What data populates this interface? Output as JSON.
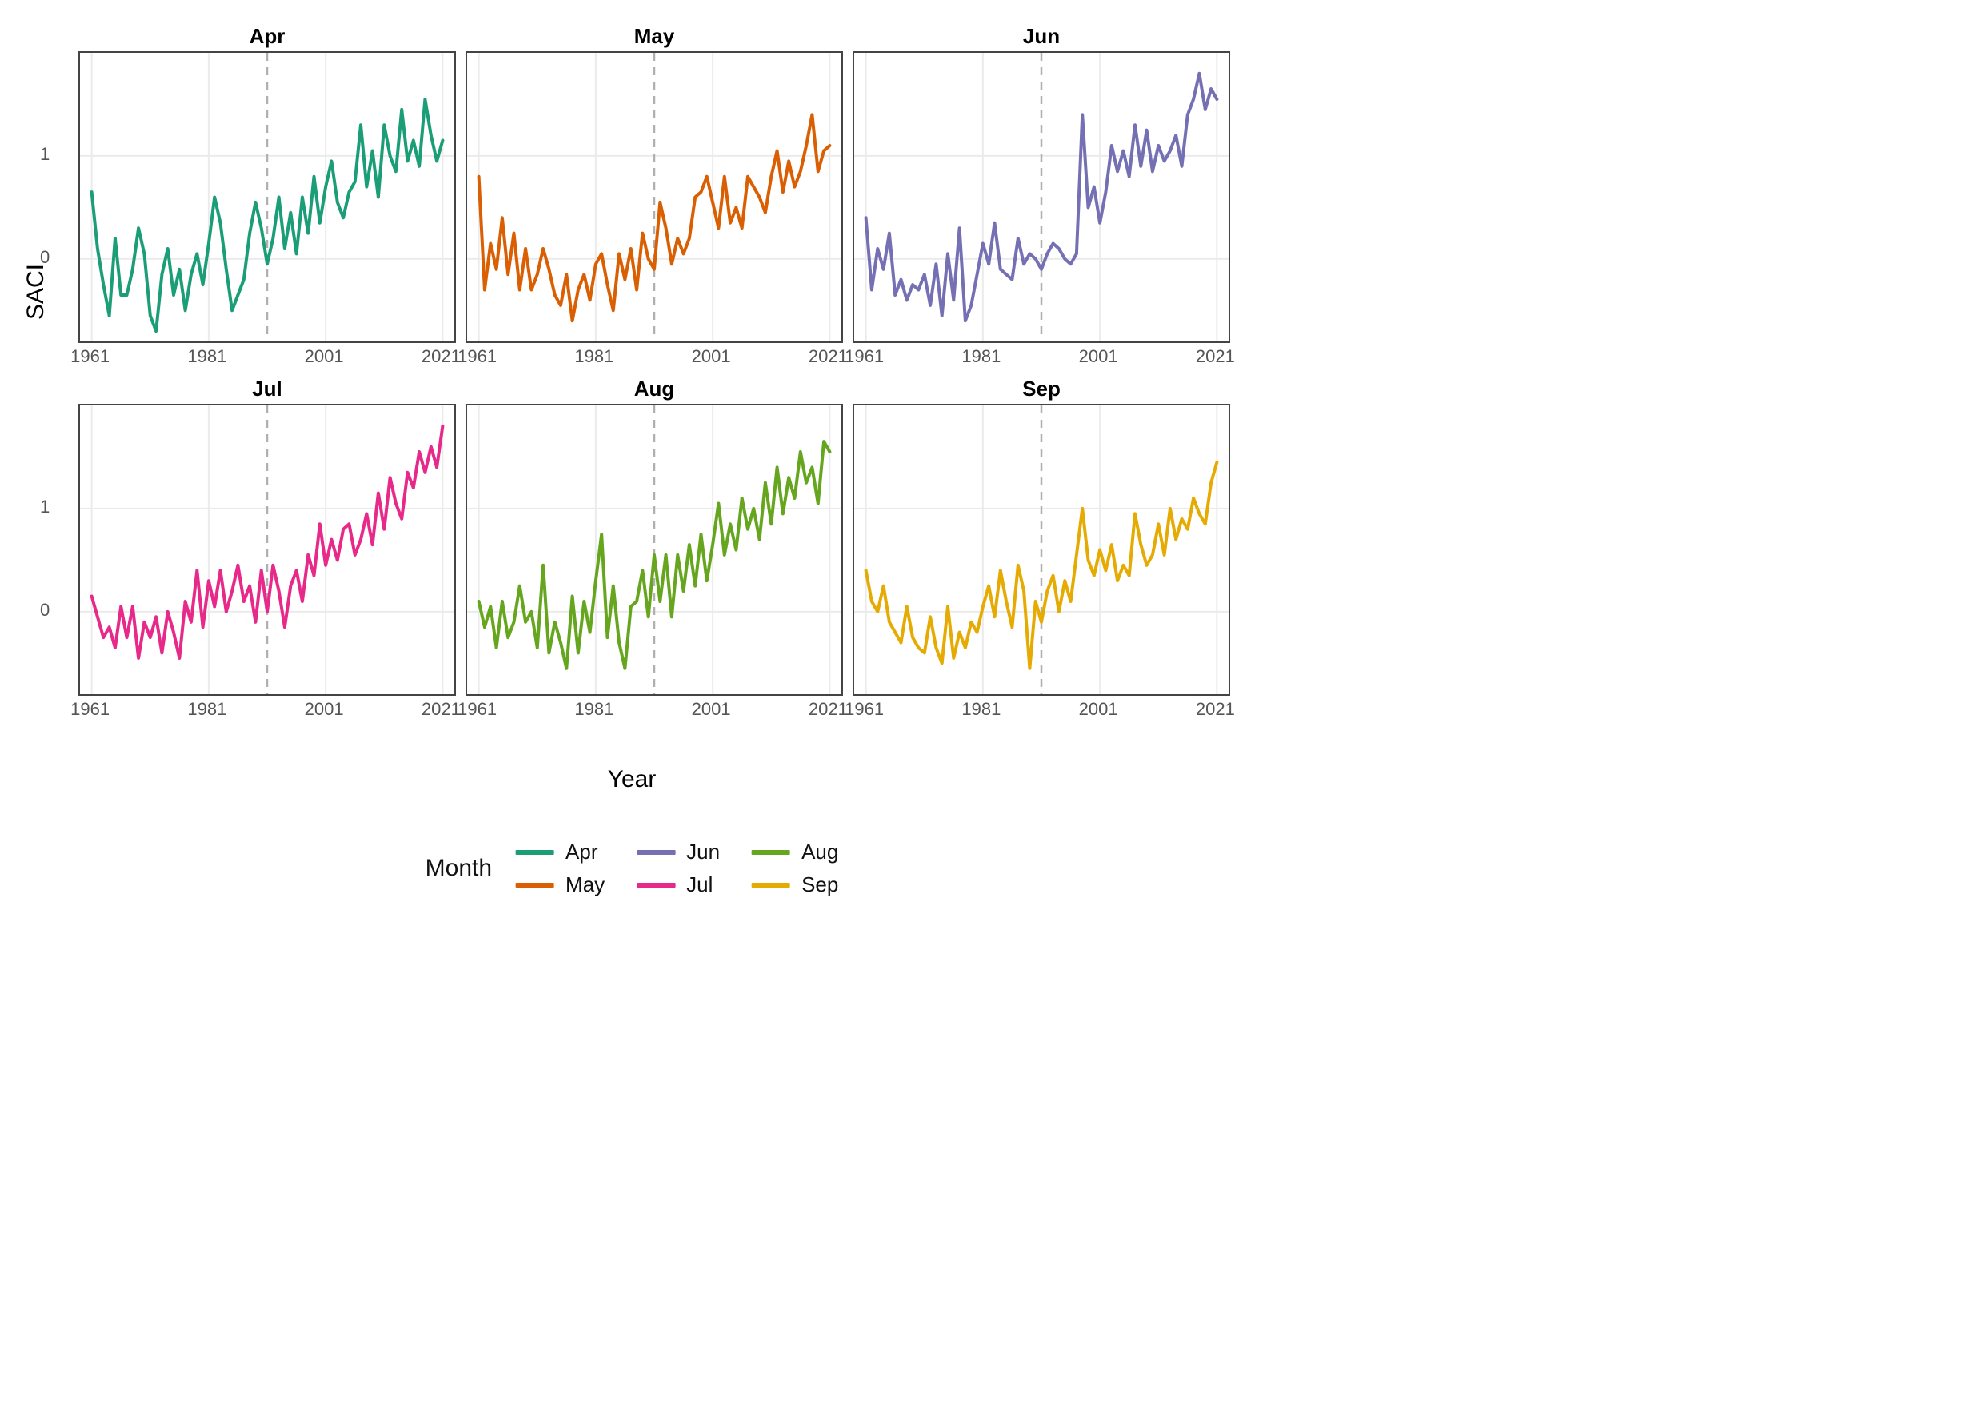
{
  "figure": {
    "background_color": "#ffffff",
    "grid_color": "#ebebeb",
    "panel_border_color": "#444444",
    "vline_color": "#b0b0b0",
    "vline_dash": "10 8",
    "line_width": 4,
    "x_axis_label": "Year",
    "y_axis_label": "SACI",
    "x_ticks": [
      1961,
      1981,
      2001,
      2021
    ],
    "x_range": [
      1959,
      2023
    ],
    "y_ticks": [
      0,
      1
    ],
    "y_range": [
      -0.8,
      2.0
    ],
    "vline_x": 1991,
    "title_fontsize": 26,
    "tick_fontsize": 22,
    "axis_label_fontsize": 30,
    "legend_title_fontsize": 30,
    "legend_label_fontsize": 26
  },
  "legend": {
    "title": "Month",
    "items": [
      {
        "label": "Apr",
        "color": "#1b9e77"
      },
      {
        "label": "May",
        "color": "#d95f02"
      },
      {
        "label": "Jun",
        "color": "#7570b3"
      },
      {
        "label": "Jul",
        "color": "#e7298a"
      },
      {
        "label": "Aug",
        "color": "#66a61e"
      },
      {
        "label": "Sep",
        "color": "#e6ab02"
      }
    ]
  },
  "facets": [
    {
      "title": "Apr",
      "color": "#1b9e77",
      "x_start": 1961,
      "values": [
        0.65,
        0.1,
        -0.25,
        -0.55,
        0.2,
        -0.35,
        -0.35,
        -0.1,
        0.3,
        0.05,
        -0.55,
        -0.7,
        -0.15,
        0.1,
        -0.35,
        -0.1,
        -0.5,
        -0.15,
        0.05,
        -0.25,
        0.15,
        0.6,
        0.35,
        -0.1,
        -0.5,
        -0.35,
        -0.2,
        0.25,
        0.55,
        0.3,
        -0.05,
        0.2,
        0.6,
        0.1,
        0.45,
        0.05,
        0.6,
        0.25,
        0.8,
        0.35,
        0.7,
        0.95,
        0.55,
        0.4,
        0.65,
        0.75,
        1.3,
        0.7,
        1.05,
        0.6,
        1.3,
        1.0,
        0.85,
        1.45,
        0.95,
        1.15,
        0.9,
        1.55,
        1.2,
        0.95,
        1.15
      ]
    },
    {
      "title": "May",
      "color": "#d95f02",
      "x_start": 1961,
      "values": [
        0.8,
        -0.3,
        0.15,
        -0.1,
        0.4,
        -0.15,
        0.25,
        -0.3,
        0.1,
        -0.3,
        -0.15,
        0.1,
        -0.1,
        -0.35,
        -0.45,
        -0.15,
        -0.6,
        -0.3,
        -0.15,
        -0.4,
        -0.05,
        0.05,
        -0.25,
        -0.5,
        0.05,
        -0.2,
        0.1,
        -0.3,
        0.25,
        0.0,
        -0.1,
        0.55,
        0.3,
        -0.05,
        0.2,
        0.05,
        0.2,
        0.6,
        0.65,
        0.8,
        0.55,
        0.3,
        0.8,
        0.35,
        0.5,
        0.3,
        0.8,
        0.7,
        0.6,
        0.45,
        0.8,
        1.05,
        0.65,
        0.95,
        0.7,
        0.85,
        1.1,
        1.4,
        0.85,
        1.05,
        1.1
      ]
    },
    {
      "title": "Jun",
      "color": "#7570b3",
      "x_start": 1961,
      "values": [
        0.4,
        -0.3,
        0.1,
        -0.1,
        0.25,
        -0.35,
        -0.2,
        -0.4,
        -0.25,
        -0.3,
        -0.15,
        -0.45,
        -0.05,
        -0.55,
        0.05,
        -0.4,
        0.3,
        -0.6,
        -0.45,
        -0.15,
        0.15,
        -0.05,
        0.35,
        -0.1,
        -0.15,
        -0.2,
        0.2,
        -0.05,
        0.05,
        0.0,
        -0.1,
        0.05,
        0.15,
        0.1,
        0.0,
        -0.05,
        0.05,
        1.4,
        0.5,
        0.7,
        0.35,
        0.65,
        1.1,
        0.85,
        1.05,
        0.8,
        1.3,
        0.9,
        1.25,
        0.85,
        1.1,
        0.95,
        1.05,
        1.2,
        0.9,
        1.4,
        1.55,
        1.8,
        1.45,
        1.65,
        1.55
      ]
    },
    {
      "title": "Jul",
      "color": "#e7298a",
      "x_start": 1961,
      "values": [
        0.15,
        -0.05,
        -0.25,
        -0.15,
        -0.35,
        0.05,
        -0.25,
        0.05,
        -0.45,
        -0.1,
        -0.25,
        -0.05,
        -0.4,
        0.0,
        -0.2,
        -0.45,
        0.1,
        -0.1,
        0.4,
        -0.15,
        0.3,
        0.05,
        0.4,
        0.0,
        0.2,
        0.45,
        0.1,
        0.25,
        -0.1,
        0.4,
        0.0,
        0.45,
        0.2,
        -0.15,
        0.25,
        0.4,
        0.1,
        0.55,
        0.35,
        0.85,
        0.45,
        0.7,
        0.5,
        0.8,
        0.85,
        0.55,
        0.7,
        0.95,
        0.65,
        1.15,
        0.8,
        1.3,
        1.05,
        0.9,
        1.35,
        1.2,
        1.55,
        1.35,
        1.6,
        1.4,
        1.8
      ]
    },
    {
      "title": "Aug",
      "color": "#66a61e",
      "x_start": 1961,
      "values": [
        0.1,
        -0.15,
        0.05,
        -0.35,
        0.1,
        -0.25,
        -0.1,
        0.25,
        -0.1,
        0.0,
        -0.35,
        0.45,
        -0.4,
        -0.1,
        -0.3,
        -0.55,
        0.15,
        -0.4,
        0.1,
        -0.2,
        0.3,
        0.75,
        -0.25,
        0.25,
        -0.3,
        -0.55,
        0.05,
        0.1,
        0.4,
        -0.05,
        0.55,
        0.1,
        0.55,
        -0.05,
        0.55,
        0.2,
        0.65,
        0.25,
        0.75,
        0.3,
        0.65,
        1.05,
        0.55,
        0.85,
        0.6,
        1.1,
        0.8,
        1.0,
        0.7,
        1.25,
        0.85,
        1.4,
        0.95,
        1.3,
        1.1,
        1.55,
        1.25,
        1.4,
        1.05,
        1.65,
        1.55
      ]
    },
    {
      "title": "Sep",
      "color": "#e6ab02",
      "x_start": 1961,
      "values": [
        0.4,
        0.1,
        0.0,
        0.25,
        -0.1,
        -0.2,
        -0.3,
        0.05,
        -0.25,
        -0.35,
        -0.4,
        -0.05,
        -0.35,
        -0.5,
        0.05,
        -0.45,
        -0.2,
        -0.35,
        -0.1,
        -0.2,
        0.05,
        0.25,
        -0.05,
        0.4,
        0.1,
        -0.15,
        0.45,
        0.2,
        -0.55,
        0.1,
        -0.1,
        0.2,
        0.35,
        0.0,
        0.3,
        0.1,
        0.55,
        1.0,
        0.5,
        0.35,
        0.6,
        0.4,
        0.65,
        0.3,
        0.45,
        0.35,
        0.95,
        0.65,
        0.45,
        0.55,
        0.85,
        0.55,
        1.0,
        0.7,
        0.9,
        0.8,
        1.1,
        0.95,
        0.85,
        1.25,
        1.45
      ]
    }
  ]
}
